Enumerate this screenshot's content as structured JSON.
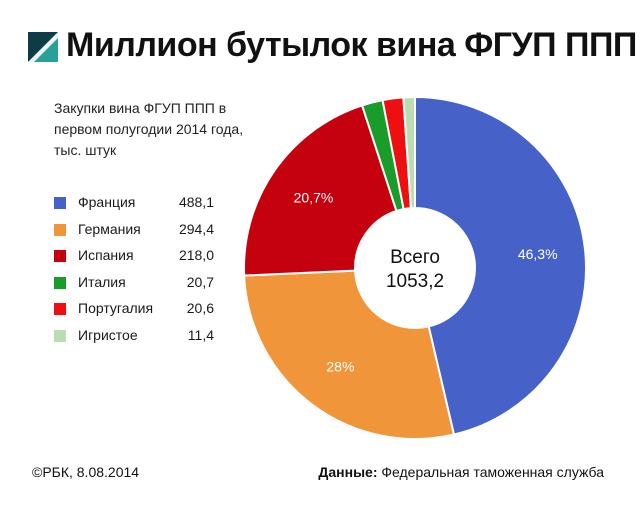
{
  "title": "Миллион бутылок вина ФГУП ППП",
  "subtitle": "Закупки вина ФГУП ППП в первом полугодии 2014 года, тыс. штук",
  "center_label": {
    "line1": "Всего",
    "line2": "1053,2"
  },
  "footer": {
    "credit": "©РБК, 8.08.2014",
    "source_label": "Данные:",
    "source_text": "Федеральная таможенная служба"
  },
  "logo": {
    "icon": "rbc-logo-icon",
    "colors": [
      "#2aa198",
      "#0d3b46"
    ]
  },
  "chart_data": {
    "type": "pie",
    "donut": true,
    "start_angle_deg": 0,
    "direction": "clockwise",
    "title": "",
    "legend_position": "left",
    "slices": [
      {
        "name": "Франция",
        "value": 488.1,
        "value_label": "488,1",
        "data_label": "46,3%",
        "color": "#4661c8"
      },
      {
        "name": "Германия",
        "value": 294.4,
        "value_label": "294,4",
        "data_label": "28%",
        "color": "#f0953a"
      },
      {
        "name": "Испания",
        "value": 218.0,
        "value_label": "218,0",
        "data_label": "20,7%",
        "color": "#c5000f"
      },
      {
        "name": "Италия",
        "value": 20.7,
        "value_label": "20,7",
        "data_label": "",
        "color": "#1a9c2a"
      },
      {
        "name": "Португалия",
        "value": 20.6,
        "value_label": "20,6",
        "data_label": "",
        "color": "#ee1010"
      },
      {
        "name": "Игристое",
        "value": 11.4,
        "value_label": "11,4",
        "data_label": "",
        "color": "#bcdcb4"
      }
    ]
  }
}
